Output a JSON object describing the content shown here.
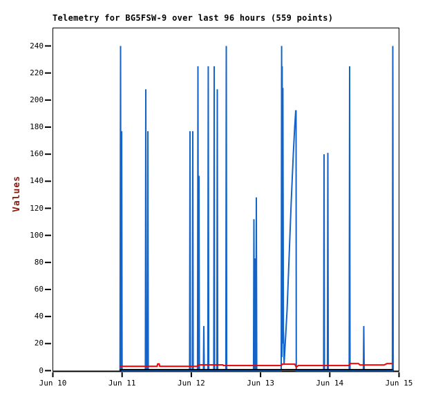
{
  "chart_data": {
    "type": "line",
    "title": "Telemetry for BG5FSW-9 over last 96 hours (559 points)",
    "ylabel": "Values",
    "x_tick_labels": [
      "Jun 10",
      "Jun 11",
      "Jun 12",
      "Jun 13",
      "Jun 14",
      "Jun 15"
    ],
    "y_ticks": [
      0,
      20,
      40,
      60,
      80,
      100,
      120,
      140,
      160,
      180,
      200,
      220,
      240
    ],
    "x_range_days_from_jun10": [
      0,
      5
    ],
    "y_axis_top_value": 253,
    "grid": false,
    "legend": false,
    "background": "#ffffff",
    "axis_color": "#000000",
    "title_color": "#000000",
    "ylabel_color": "#8b1a10",
    "series": [
      {
        "name": "blue-spikes",
        "color": "#1464c8",
        "stroke_width": 2,
        "points": [
          [
            0.97,
            0
          ],
          [
            0.978,
            240
          ],
          [
            0.984,
            0
          ],
          [
            0.994,
            177
          ],
          [
            1.0,
            0
          ],
          [
            1.336,
            0
          ],
          [
            1.342,
            208
          ],
          [
            1.348,
            0
          ],
          [
            1.366,
            0
          ],
          [
            1.372,
            177
          ],
          [
            1.378,
            0
          ],
          [
            1.975,
            0
          ],
          [
            1.981,
            177
          ],
          [
            1.987,
            0
          ],
          [
            2.015,
            0
          ],
          [
            2.021,
            177
          ],
          [
            2.027,
            0
          ],
          [
            2.09,
            0
          ],
          [
            2.096,
            225
          ],
          [
            2.102,
            0
          ],
          [
            2.106,
            0
          ],
          [
            2.111,
            144
          ],
          [
            2.117,
            0
          ],
          [
            2.175,
            0
          ],
          [
            2.181,
            33
          ],
          [
            2.187,
            0
          ],
          [
            2.239,
            0
          ],
          [
            2.245,
            225
          ],
          [
            2.251,
            0
          ],
          [
            2.324,
            0
          ],
          [
            2.33,
            225
          ],
          [
            2.336,
            0
          ],
          [
            2.369,
            0
          ],
          [
            2.375,
            208
          ],
          [
            2.381,
            0
          ],
          [
            2.499,
            0
          ],
          [
            2.505,
            240
          ],
          [
            2.511,
            0
          ],
          [
            2.898,
            0
          ],
          [
            2.904,
            112
          ],
          [
            2.91,
            0
          ],
          [
            2.918,
            0
          ],
          [
            2.924,
            83
          ],
          [
            2.93,
            0
          ],
          [
            2.933,
            0
          ],
          [
            2.939,
            128
          ],
          [
            2.945,
            0
          ],
          [
            3.298,
            0
          ],
          [
            3.304,
            240
          ],
          [
            3.308,
            10
          ],
          [
            3.312,
            225
          ],
          [
            3.318,
            20
          ],
          [
            3.322,
            209
          ],
          [
            3.33,
            30
          ],
          [
            3.34,
            5
          ],
          [
            3.383,
            45
          ],
          [
            3.413,
            85
          ],
          [
            3.443,
            125
          ],
          [
            3.473,
            160
          ],
          [
            3.493,
            180
          ],
          [
            3.508,
            192
          ],
          [
            3.513,
            192
          ],
          [
            3.516,
            0
          ],
          [
            3.911,
            0
          ],
          [
            3.917,
            160
          ],
          [
            3.923,
            0
          ],
          [
            3.966,
            0
          ],
          [
            3.972,
            161
          ],
          [
            3.978,
            0
          ],
          [
            4.28,
            0
          ],
          [
            4.286,
            225
          ],
          [
            4.292,
            0
          ],
          [
            4.485,
            0
          ],
          [
            4.491,
            33
          ],
          [
            4.497,
            0
          ],
          [
            4.904,
            0
          ],
          [
            4.91,
            240
          ],
          [
            4.916,
            0
          ]
        ]
      },
      {
        "name": "red-line",
        "color": "#ee0000",
        "stroke_width": 2,
        "points": [
          [
            0.968,
            3.2
          ],
          [
            1.505,
            3.2
          ],
          [
            1.515,
            5.0
          ],
          [
            1.535,
            5.0
          ],
          [
            1.545,
            3.2
          ],
          [
            2.085,
            3.2
          ],
          [
            2.105,
            4.3
          ],
          [
            2.455,
            4.3
          ],
          [
            2.465,
            3.8
          ],
          [
            3.295,
            3.8
          ],
          [
            3.315,
            4.8
          ],
          [
            3.495,
            4.8
          ],
          [
            3.515,
            2.6
          ],
          [
            3.545,
            3.8
          ],
          [
            4.275,
            3.8
          ],
          [
            4.295,
            5.2
          ],
          [
            4.415,
            5.2
          ],
          [
            4.435,
            4.2
          ],
          [
            4.785,
            4.2
          ],
          [
            4.825,
            5.2
          ],
          [
            4.91,
            5.2
          ]
        ]
      },
      {
        "name": "black-line",
        "color": "#000000",
        "stroke_width": 2,
        "points": [
          [
            0.968,
            0.7
          ],
          [
            4.91,
            0.7
          ]
        ]
      }
    ]
  }
}
